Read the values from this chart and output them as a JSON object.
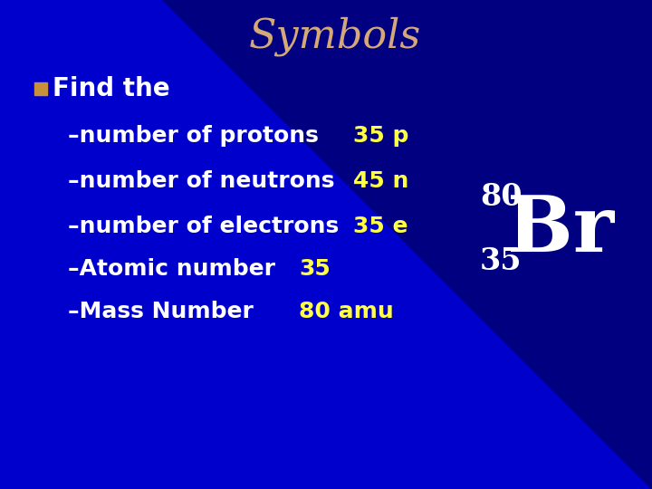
{
  "title": "Symbols",
  "title_color": "#D4A878",
  "title_fontsize": 32,
  "background_color": "#0000CC",
  "bullet_color": "#C8903A",
  "text_color": "#FFFFFF",
  "answer_color": "#FFFF44",
  "br_color": "#FFFFFF",
  "bullet_text": "Find the",
  "lines": [
    {
      "text": "–number of protons",
      "answer": "35 p"
    },
    {
      "text": "–number of neutrons",
      "answer": "45 n"
    },
    {
      "text": "–number of electrons",
      "answer": "35 e"
    },
    {
      "text": "–Atomic number",
      "answer": "35"
    },
    {
      "text": "–Mass Number",
      "answer": "80 amu"
    }
  ],
  "br_symbol": "Br",
  "br_superscript": "80",
  "br_subscript": "35",
  "main_fontsize": 20,
  "sub_fontsize": 18,
  "answer_fontsize": 18,
  "br_fontsize": 62,
  "br_num_fontsize": 24,
  "arc_color_inner": "#3333EE",
  "arc_color_outer": "#1A1ABB",
  "dark_right_color": "#000088"
}
